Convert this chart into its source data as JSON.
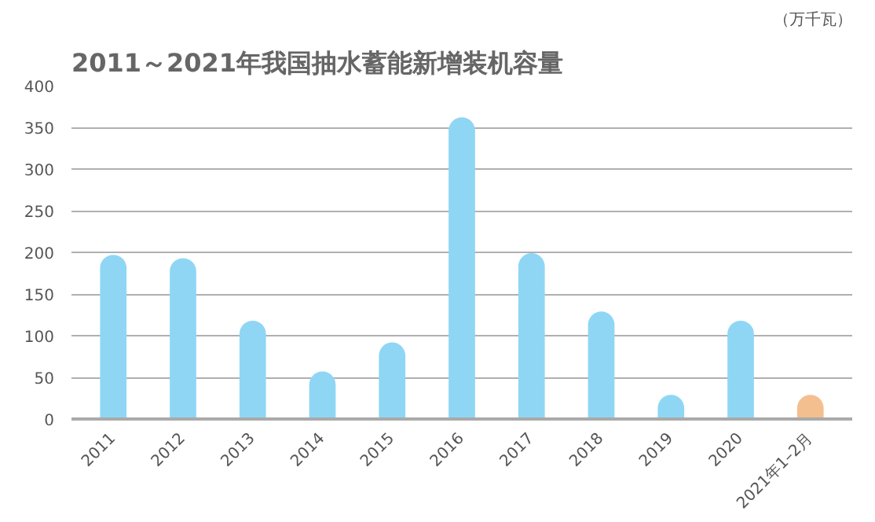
{
  "chart_data": {
    "type": "bar",
    "title": "2011～2021年我国抽水蓄能新增装机容量",
    "subtitle": "（万千瓦）",
    "categories": [
      "2011",
      "2012",
      "2013",
      "2014",
      "2015",
      "2016",
      "2017",
      "2018",
      "2019",
      "2020",
      "2021年1–2月"
    ],
    "values": [
      197,
      193,
      118,
      57,
      92,
      362,
      199,
      129,
      29,
      118,
      29
    ],
    "colors": [
      "#8fd6f5",
      "#8fd6f5",
      "#8fd6f5",
      "#8fd6f5",
      "#8fd6f5",
      "#8fd6f5",
      "#8fd6f5",
      "#8fd6f5",
      "#8fd6f5",
      "#8fd6f5",
      "#f4bf8f"
    ],
    "ylim": [
      0,
      400
    ],
    "yticks": [
      0,
      50,
      100,
      150,
      200,
      250,
      300,
      350,
      400
    ],
    "grid": "y"
  }
}
